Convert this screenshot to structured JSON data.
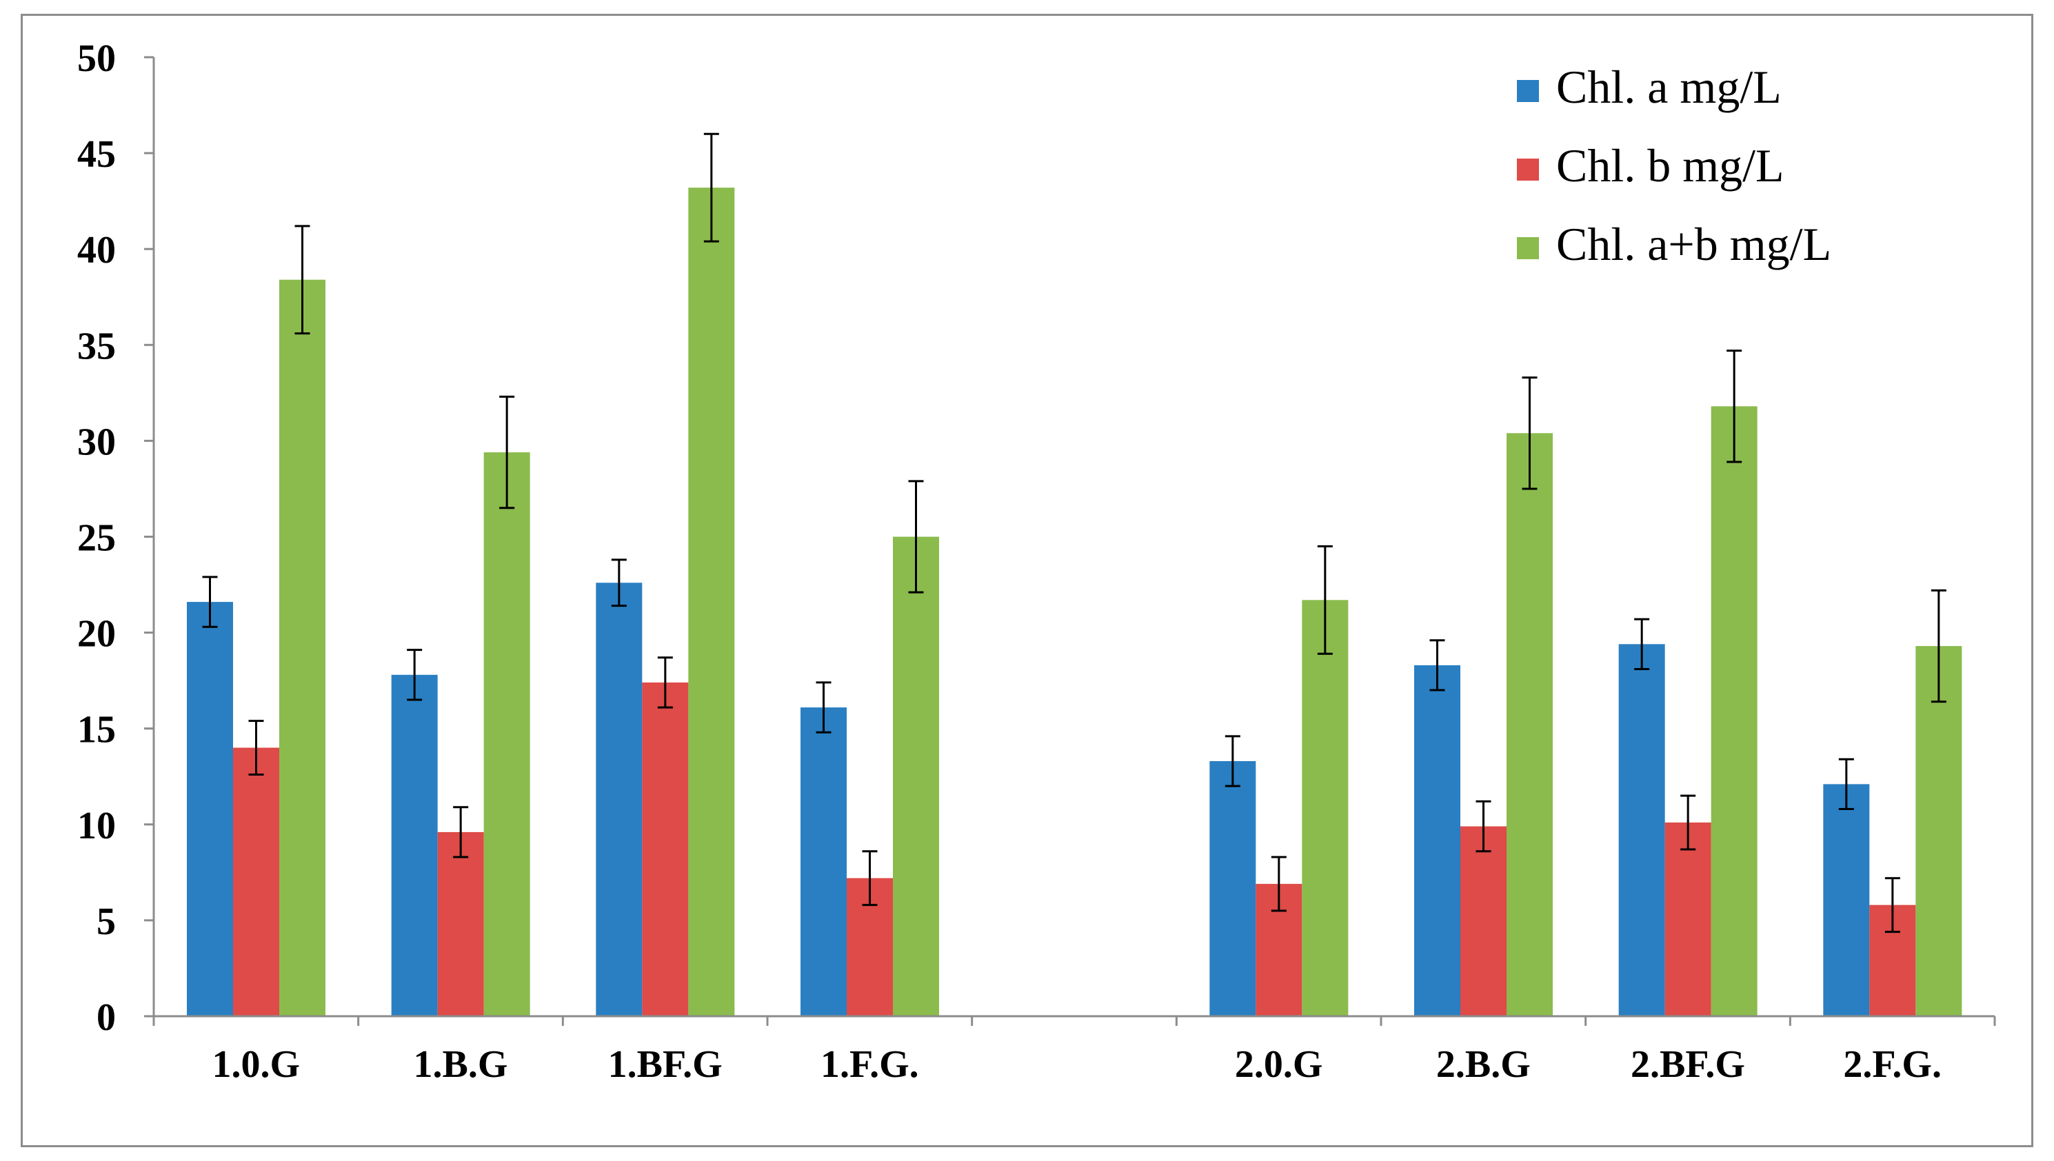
{
  "chart_data": {
    "type": "bar",
    "title": "",
    "xlabel": "",
    "ylabel": "",
    "ylim": [
      0,
      50
    ],
    "yticks": [
      0,
      5,
      10,
      15,
      20,
      25,
      30,
      35,
      40,
      45,
      50
    ],
    "grid": false,
    "legend_position": "top-right",
    "categories": [
      "1.0.G",
      "1.B.G",
      "1.BF.G",
      "1.F.G.",
      "",
      "2.0.G",
      "2.B.G",
      "2.BF.G",
      "2.F.G."
    ],
    "series": [
      {
        "name": "Chl. a mg/L",
        "color": "#2a7fc2",
        "values": [
          21.6,
          17.8,
          22.6,
          16.1,
          null,
          13.3,
          18.3,
          19.4,
          12.1
        ],
        "errors": [
          1.3,
          1.3,
          1.2,
          1.3,
          null,
          1.3,
          1.3,
          1.3,
          1.3
        ]
      },
      {
        "name": "Chl. b mg/L",
        "color": "#de4b48",
        "values": [
          14.0,
          9.6,
          17.4,
          7.2,
          null,
          6.9,
          9.9,
          10.1,
          5.8
        ],
        "errors": [
          1.4,
          1.3,
          1.3,
          1.4,
          null,
          1.4,
          1.3,
          1.4,
          1.4
        ]
      },
      {
        "name": "Chl. a+b mg/L",
        "color": "#8bbb4d",
        "values": [
          38.4,
          29.4,
          43.2,
          25.0,
          null,
          21.7,
          30.4,
          31.8,
          19.3
        ],
        "errors": [
          2.8,
          2.9,
          2.8,
          2.9,
          null,
          2.8,
          2.9,
          2.9,
          2.9
        ]
      }
    ]
  }
}
